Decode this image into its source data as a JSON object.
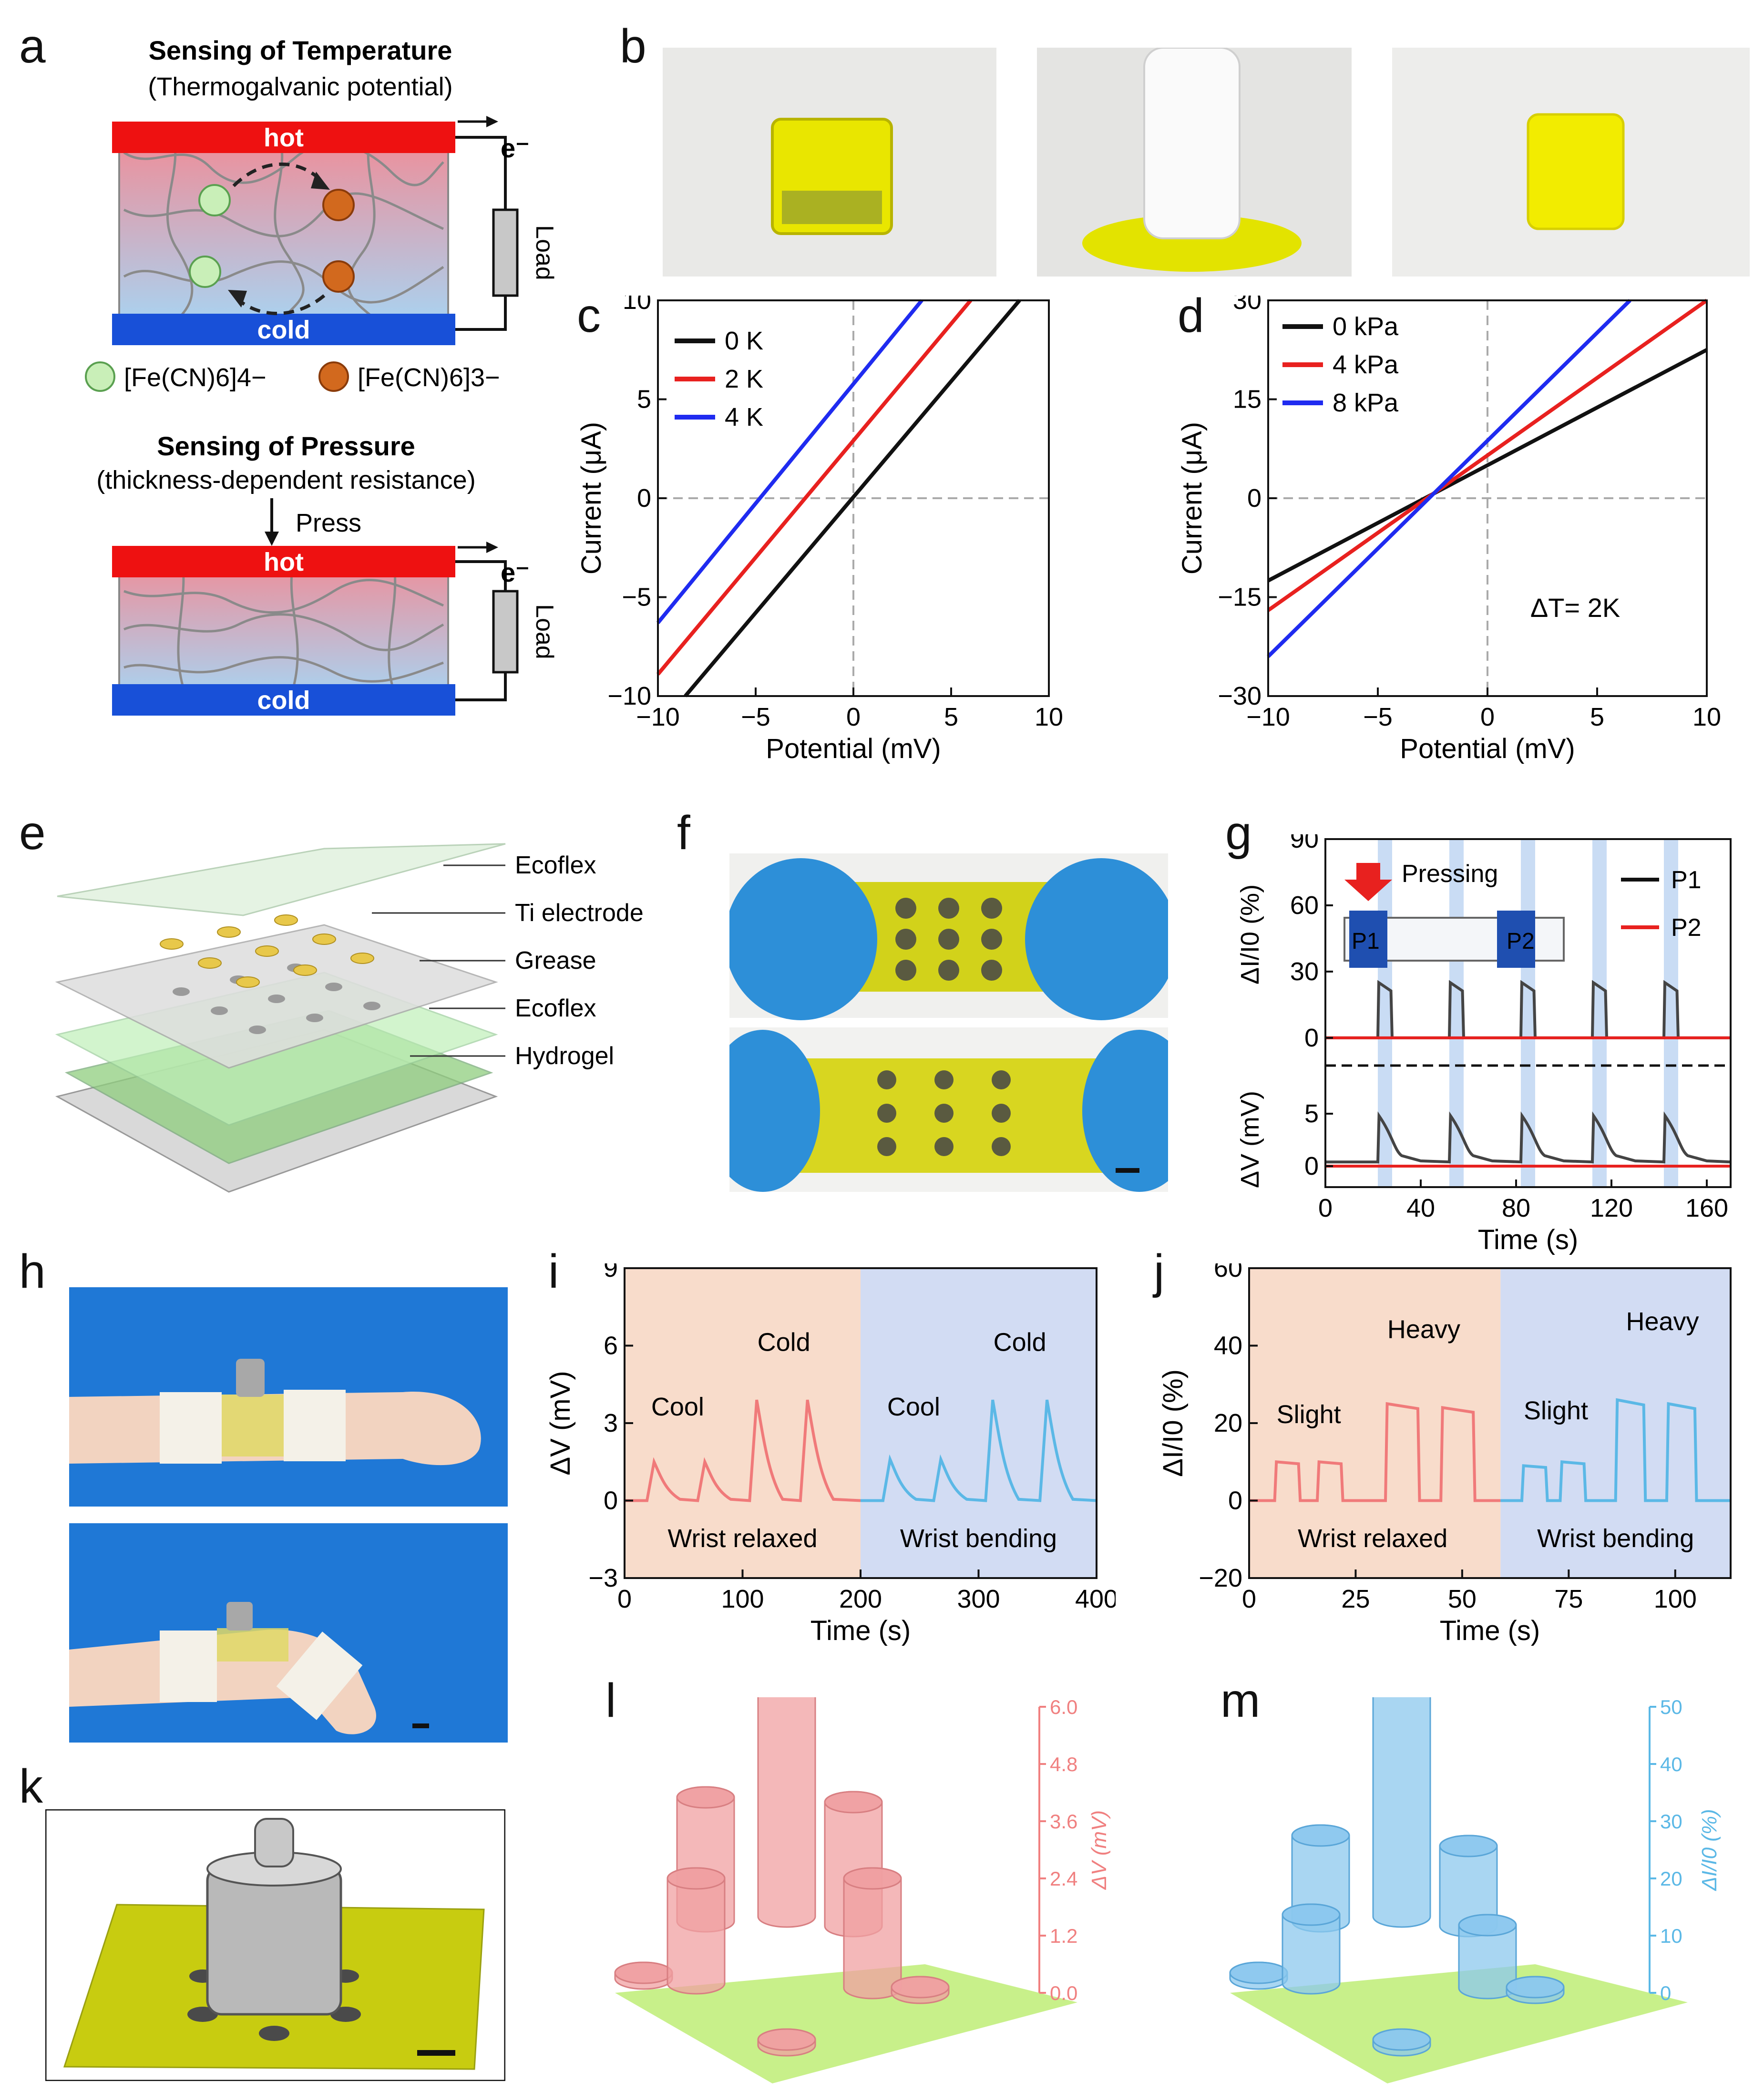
{
  "labels": {
    "a": "a",
    "b": "b",
    "c": "c",
    "d": "d",
    "e": "e",
    "f": "f",
    "g": "g",
    "h": "h",
    "i": "i",
    "j": "j",
    "k": "k",
    "l": "l",
    "m": "m"
  },
  "panel_a": {
    "title1": "Sensing of Temperature",
    "subtitle1": "(Thermogalvanic potential)",
    "hot": "hot",
    "cold": "cold",
    "electron": "e⁻",
    "load": "Load",
    "legend_green": "[Fe(CN)6]4−",
    "legend_orange": "[Fe(CN)6]3−",
    "title2": "Sensing of Pressure",
    "subtitle2": "(thickness-dependent resistance)",
    "press": "Press"
  },
  "panel_e": {
    "layers": [
      "Ecoflex",
      "Ti electrode",
      "Grease",
      "Ecoflex",
      "Hydrogel"
    ]
  },
  "colors": {
    "black": "#111111",
    "red": "#e8211f",
    "blue": "#1f2bf0",
    "cyan": "#5bb8e6",
    "pink": "#f07a7a",
    "hot": "#ee1111",
    "cold": "#1850d8"
  },
  "chart_data": [
    {
      "id": "c",
      "type": "line",
      "xlabel": "Potential (mV)",
      "ylabel": "Current (μA)",
      "xlim": [
        -10,
        10
      ],
      "ylim": [
        -10,
        10
      ],
      "xticks": [
        -10,
        -5,
        0,
        5,
        10
      ],
      "yticks": [
        -10,
        -5,
        0,
        5,
        10
      ],
      "legend_position": "top-left",
      "series": [
        {
          "name": "0 K",
          "x": [
            -8.6,
            8.5
          ],
          "y": [
            -10,
            10
          ]
        },
        {
          "name": "2 K",
          "x": [
            -10,
            6
          ],
          "y": [
            -8.9,
            10
          ]
        },
        {
          "name": "4 K",
          "x": [
            -10,
            3.5
          ],
          "y": [
            -6.3,
            10
          ]
        }
      ]
    },
    {
      "id": "d",
      "type": "line",
      "xlabel": "Potential (mV)",
      "ylabel": "Current (μA)",
      "xlim": [
        -10,
        10
      ],
      "ylim": [
        -30,
        30
      ],
      "xticks": [
        -10,
        -5,
        0,
        5,
        10
      ],
      "yticks": [
        -30,
        -15,
        0,
        15,
        30
      ],
      "legend_position": "top-left",
      "annotation": "ΔT= 2K",
      "series": [
        {
          "name": "0 kPa",
          "x": [
            -10,
            10
          ],
          "y": [
            -12.5,
            22.5
          ]
        },
        {
          "name": "4 kPa",
          "x": [
            -10,
            10
          ],
          "y": [
            -17,
            30
          ]
        },
        {
          "name": "8 kPa",
          "x": [
            -10,
            6.5
          ],
          "y": [
            -24,
            30
          ]
        }
      ]
    },
    {
      "id": "g",
      "type": "line",
      "xlabel": "Time (s)",
      "ylabel_top": "ΔI/I0 (%)",
      "ylabel_bottom": "ΔV (mV)",
      "xlim": [
        0,
        170
      ],
      "xticks": [
        0,
        40,
        80,
        120,
        160
      ],
      "ylim_top": [
        -5,
        90
      ],
      "yticks_top": [
        0,
        30,
        60,
        90
      ],
      "ylim_bottom": [
        -2,
        8
      ],
      "yticks_bottom": [
        0,
        5
      ],
      "inset_text": "Pressing",
      "inset_labels": [
        "P1",
        "P2"
      ],
      "legend": [
        "P1",
        "P2"
      ],
      "press_times": [
        22,
        52,
        82,
        112,
        142
      ],
      "press_width": 6,
      "peak_top": 25,
      "peak_bottom": 4.8
    },
    {
      "id": "i",
      "type": "line",
      "xlabel": "Time (s)",
      "ylabel": "ΔV (mV)",
      "xlim": [
        0,
        400
      ],
      "ylim": [
        -3,
        9
      ],
      "xticks": [
        0,
        100,
        200,
        300,
        400
      ],
      "yticks": [
        -3,
        0,
        3,
        6,
        9
      ],
      "regions": [
        "Wrist relaxed",
        "Wrist bending"
      ],
      "region_split": 200,
      "peak_labels": [
        "Cool",
        "Cold",
        "Cool",
        "Cold"
      ],
      "peaks": [
        {
          "t": 25,
          "v": 1.5
        },
        {
          "t": 68,
          "v": 1.5
        },
        {
          "t": 112,
          "v": 3.9
        },
        {
          "t": 155,
          "v": 3.9
        },
        {
          "t": 225,
          "v": 1.6
        },
        {
          "t": 268,
          "v": 1.6
        },
        {
          "t": 312,
          "v": 3.9
        },
        {
          "t": 358,
          "v": 3.9
        }
      ]
    },
    {
      "id": "j",
      "type": "line",
      "xlabel": "Time (s)",
      "ylabel": "ΔI/I0 (%)",
      "xlim": [
        0,
        113
      ],
      "ylim": [
        -20,
        60
      ],
      "xticks": [
        0,
        25,
        50,
        75,
        100
      ],
      "yticks": [
        -20,
        0,
        20,
        40,
        60
      ],
      "regions": [
        "Wrist relaxed",
        "Wrist bending"
      ],
      "region_split": 59,
      "peak_labels": [
        "Slight",
        "Heavy",
        "Slight",
        "Heavy"
      ],
      "plateaus": [
        {
          "t0": 6,
          "t1": 12,
          "v": 10
        },
        {
          "t0": 16,
          "t1": 22,
          "v": 10
        },
        {
          "t0": 32,
          "t1": 40,
          "v": 25
        },
        {
          "t0": 45,
          "t1": 53,
          "v": 24
        },
        {
          "t0": 64,
          "t1": 70,
          "v": 9
        },
        {
          "t0": 73,
          "t1": 79,
          "v": 10
        },
        {
          "t0": 86,
          "t1": 93,
          "v": 26
        },
        {
          "t0": 98,
          "t1": 105,
          "v": 25
        }
      ]
    },
    {
      "id": "l",
      "type": "bar3d",
      "axis_label": "ΔV (mV)",
      "ylim": [
        0,
        6.0
      ],
      "ticks": [
        "0.0",
        "1.2",
        "2.4",
        "3.6",
        "4.8",
        "6.0"
      ],
      "values": [
        2.6,
        5.8,
        2.6,
        2.2,
        2.3,
        0.1,
        0.1,
        0.1
      ]
    },
    {
      "id": "m",
      "type": "bar3d",
      "axis_label": "ΔI/I0 (%)",
      "ylim": [
        0,
        50
      ],
      "ticks": [
        "0",
        "10",
        "20",
        "30",
        "40",
        "50"
      ],
      "values": [
        15,
        47,
        14,
        12,
        11,
        0.5,
        0.5,
        0.5
      ]
    }
  ]
}
